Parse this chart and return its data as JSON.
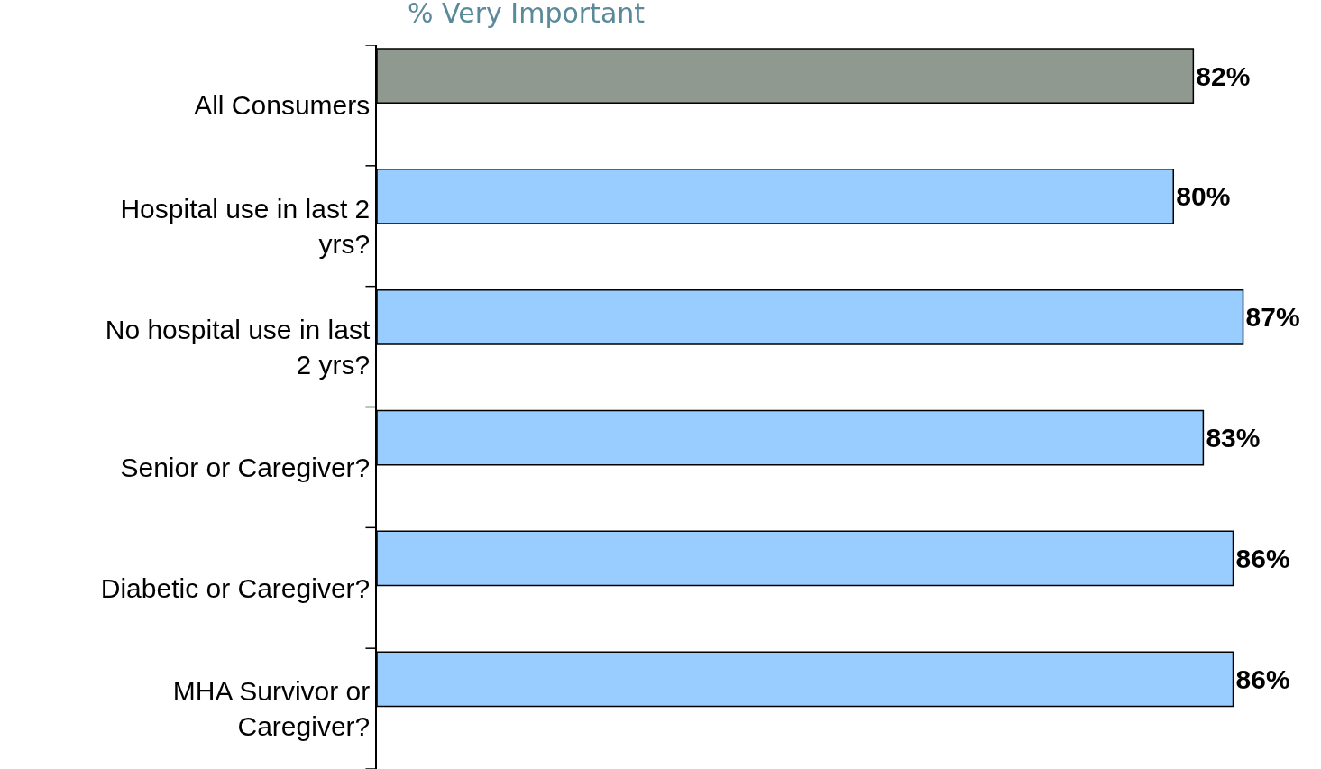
{
  "chart_data": {
    "type": "bar",
    "orientation": "horizontal",
    "title": "% Very Important",
    "categories": [
      "All Consumers",
      "Hospital use in last 2 yrs?",
      "No hospital use in last 2 yrs?",
      "Senior or Caregiver?",
      "Diabetic or Caregiver?",
      "MHA Survivor or Caregiver?"
    ],
    "values": [
      82,
      80,
      87,
      83,
      86,
      86
    ],
    "colors": [
      "#8f9990",
      "#99ccff",
      "#99ccff",
      "#99ccff",
      "#99ccff",
      "#99ccff"
    ],
    "value_labels": [
      "82%",
      "80%",
      "87%",
      "83%",
      "86%",
      "86%"
    ],
    "tick_labels": "y"
  }
}
